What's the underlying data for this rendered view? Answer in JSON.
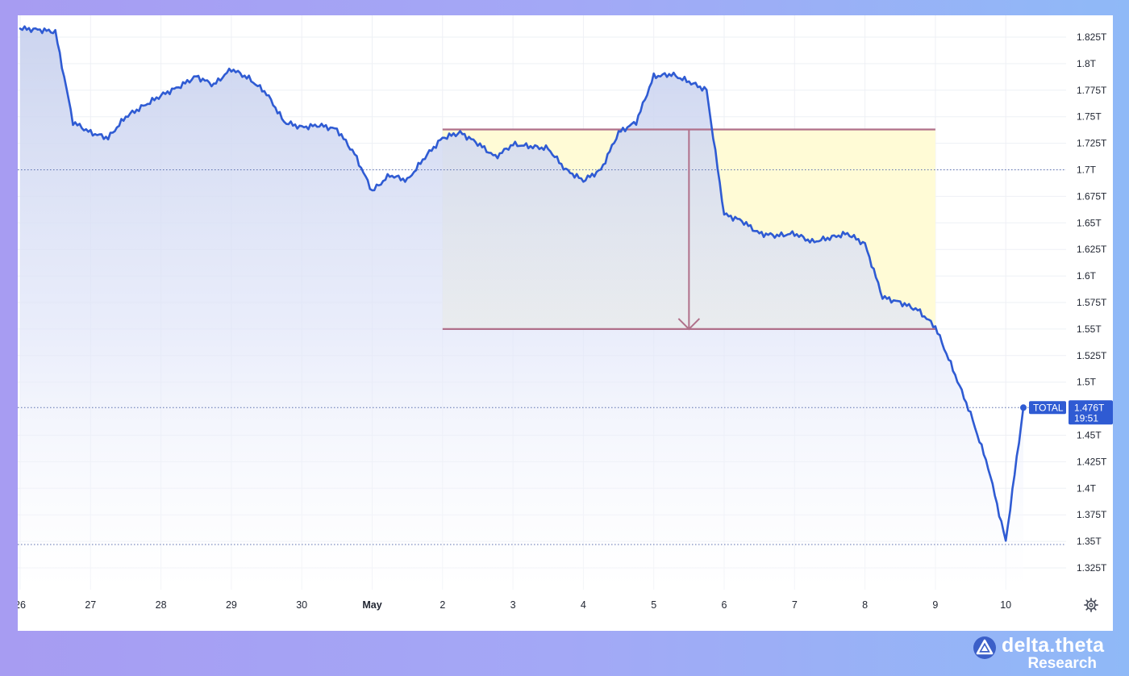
{
  "chart_data": {
    "type": "line",
    "series": [
      {
        "name": "TOTAL",
        "x": [
          "Apr 26 00:00",
          "Apr 26 06:00",
          "Apr 26 12:00",
          "Apr 26 18:00",
          "Apr 27 00:00",
          "Apr 27 06:00",
          "Apr 27 12:00",
          "Apr 27 18:00",
          "Apr 28 00:00",
          "Apr 28 06:00",
          "Apr 28 12:00",
          "Apr 28 18:00",
          "Apr 29 00:00",
          "Apr 29 06:00",
          "Apr 29 12:00",
          "Apr 29 18:00",
          "Apr 30 00:00",
          "Apr 30 06:00",
          "Apr 30 12:00",
          "Apr 30 18:00",
          "May 1 00:00",
          "May 1 06:00",
          "May 1 12:00",
          "May 1 18:00",
          "May 2 00:00",
          "May 2 06:00",
          "May 2 12:00",
          "May 2 18:00",
          "May 3 00:00",
          "May 3 06:00",
          "May 3 12:00",
          "May 3 18:00",
          "May 4 00:00",
          "May 4 06:00",
          "May 4 12:00",
          "May 4 18:00",
          "May 5 00:00",
          "May 5 06:00",
          "May 5 12:00",
          "May 5 18:00",
          "May 6 00:00",
          "May 6 06:00",
          "May 6 12:00",
          "May 6 18:00",
          "May 7 00:00",
          "May 7 06:00",
          "May 7 12:00",
          "May 7 18:00",
          "May 8 00:00",
          "May 8 06:00",
          "May 8 12:00",
          "May 8 18:00",
          "May 9 00:00",
          "May 9 06:00",
          "May 9 12:00",
          "May 9 18:00",
          "May 10 00:00",
          "May 10 06:00"
        ],
        "values": [
          1.833,
          1.832,
          1.83,
          1.745,
          1.735,
          1.73,
          1.75,
          1.76,
          1.77,
          1.778,
          1.788,
          1.78,
          1.795,
          1.786,
          1.772,
          1.745,
          1.74,
          1.742,
          1.738,
          1.715,
          1.68,
          1.695,
          1.69,
          1.712,
          1.73,
          1.735,
          1.725,
          1.712,
          1.724,
          1.722,
          1.72,
          1.7,
          1.69,
          1.7,
          1.735,
          1.745,
          1.788,
          1.79,
          1.783,
          1.775,
          1.658,
          1.652,
          1.64,
          1.638,
          1.64,
          1.632,
          1.636,
          1.64,
          1.63,
          1.58,
          1.575,
          1.568,
          1.552,
          1.512,
          1.47,
          1.42,
          1.35,
          1.476
        ],
        "color": "#2f5bd3"
      }
    ],
    "x_ticks": [
      "26",
      "27",
      "28",
      "29",
      "30",
      "May",
      "2",
      "3",
      "4",
      "5",
      "6",
      "7",
      "8",
      "9",
      "10"
    ],
    "y_ticks": [
      "1.825T",
      "1.8T",
      "1.775T",
      "1.75T",
      "1.725T",
      "1.7T",
      "1.675T",
      "1.65T",
      "1.625T",
      "1.6T",
      "1.575T",
      "1.55T",
      "1.525T",
      "1.5T",
      "1.45T",
      "1.425T",
      "1.4T",
      "1.375T",
      "1.35T",
      "1.325T"
    ],
    "ylim": [
      1.31,
      1.84
    ],
    "last_value": {
      "series_label": "TOTAL",
      "value_label": "1.476T",
      "countdown": "19:51",
      "value": 1.476
    },
    "reference_lines": [
      1.7,
      1.476,
      1.347
    ],
    "annotation": {
      "type": "price-range",
      "top": 1.738,
      "bottom": 1.55,
      "start": "May 2 00:00",
      "end": "May 9 00:00",
      "arrow_at": "May 5 12:00",
      "fill_color": "#fffbd6",
      "line_color": "#b0708a"
    },
    "grid": true,
    "colors": {
      "line": "#2f5bd3",
      "area_top": "#c9d2ee",
      "area_bottom": "#ffffff",
      "label_bg": "#2f5bd3"
    }
  },
  "brand": {
    "name": "delta.theta",
    "sub": "Research"
  },
  "icons": {
    "settings": "gear-icon",
    "brand_logo": "delta-logo-icon"
  }
}
